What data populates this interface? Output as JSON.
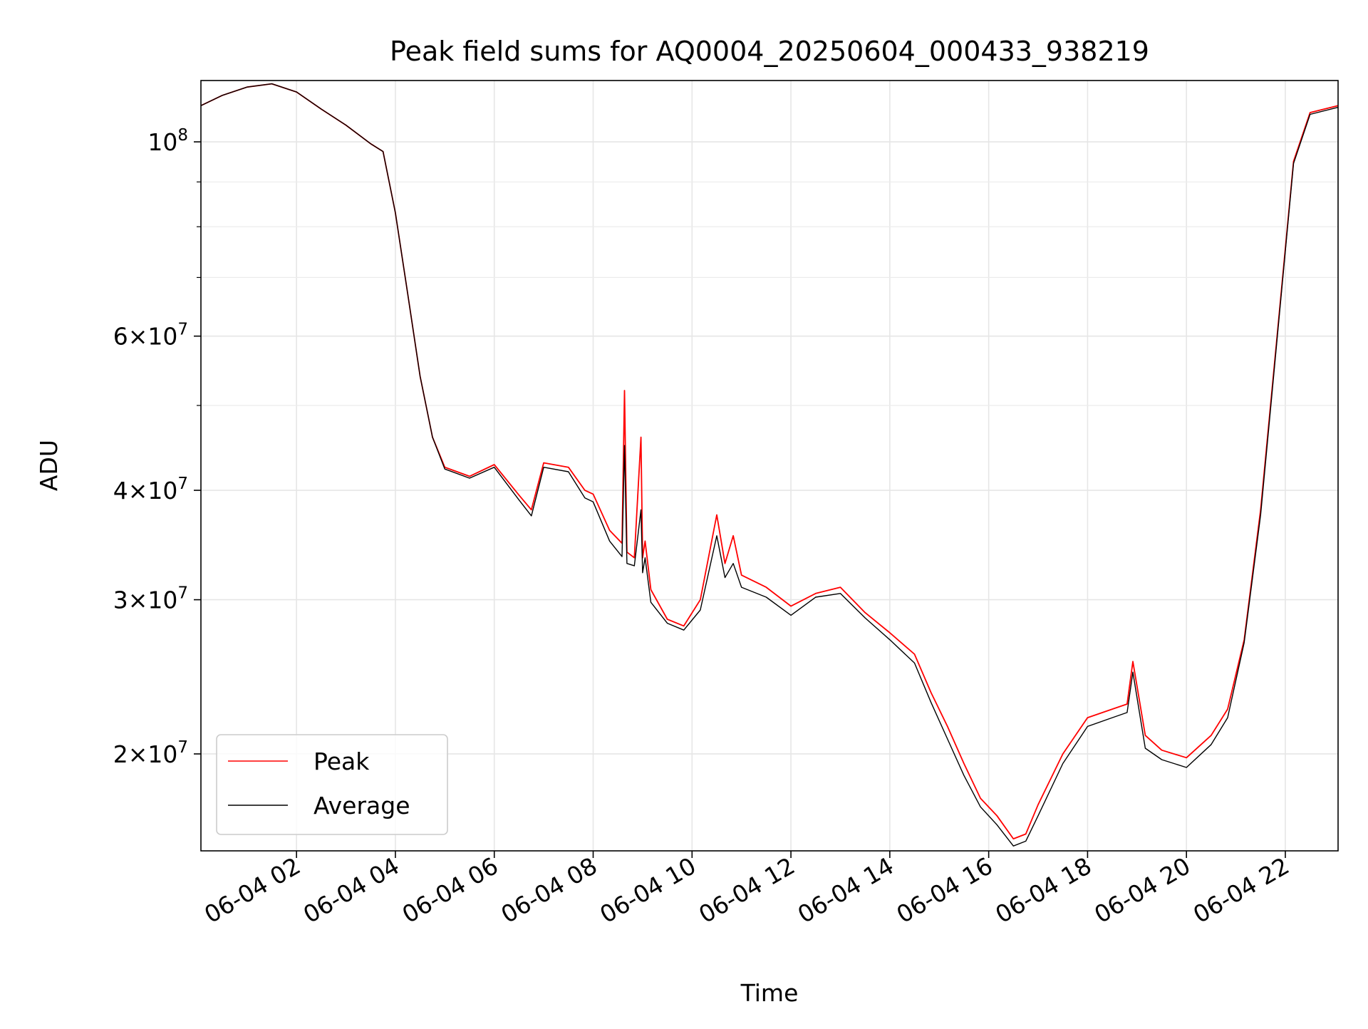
{
  "chart_data": {
    "type": "line",
    "title": "Peak field sums for AQ0004_20250604_000433_938219",
    "xlabel": "Time",
    "ylabel": "ADU",
    "y_scale": "log",
    "grid": true,
    "legend_position": "lower-left",
    "x_range": [
      "2025-06-04 00:04",
      "2025-06-04 23:04"
    ],
    "ylim": [
      15500000,
      117500000
    ],
    "x_ticks": [
      {
        "x": "2025-06-04 02:00",
        "label": "06-04 02"
      },
      {
        "x": "2025-06-04 04:00",
        "label": "06-04 04"
      },
      {
        "x": "2025-06-04 06:00",
        "label": "06-04 06"
      },
      {
        "x": "2025-06-04 08:00",
        "label": "06-04 08"
      },
      {
        "x": "2025-06-04 10:00",
        "label": "06-04 10"
      },
      {
        "x": "2025-06-04 12:00",
        "label": "06-04 12"
      },
      {
        "x": "2025-06-04 14:00",
        "label": "06-04 14"
      },
      {
        "x": "2025-06-04 16:00",
        "label": "06-04 16"
      },
      {
        "x": "2025-06-04 18:00",
        "label": "06-04 18"
      },
      {
        "x": "2025-06-04 20:00",
        "label": "06-04 20"
      },
      {
        "x": "2025-06-04 22:00",
        "label": "06-04 22"
      }
    ],
    "y_ticks": [
      {
        "value": 20000000,
        "label_mantissa": "2×10",
        "label_exp": "7"
      },
      {
        "value": 30000000,
        "label_mantissa": "3×10",
        "label_exp": "7"
      },
      {
        "value": 40000000,
        "label_mantissa": "4×10",
        "label_exp": "7"
      },
      {
        "value": 60000000,
        "label_mantissa": "6×10",
        "label_exp": "7"
      },
      {
        "value": 100000000,
        "label_mantissa": "10",
        "label_exp": "8"
      }
    ],
    "y_minor_ticks": [
      50000000,
      70000000,
      80000000,
      90000000
    ],
    "series": [
      {
        "name": "Peak",
        "color": "#ff0000",
        "x": [
          "2025-06-04 00:04",
          "2025-06-04 00:30",
          "2025-06-04 01:00",
          "2025-06-04 01:30",
          "2025-06-04 02:00",
          "2025-06-04 02:30",
          "2025-06-04 03:00",
          "2025-06-04 03:30",
          "2025-06-04 03:45",
          "2025-06-04 04:00",
          "2025-06-04 04:15",
          "2025-06-04 04:30",
          "2025-06-04 04:45",
          "2025-06-04 05:00",
          "2025-06-04 05:30",
          "2025-06-04 06:00",
          "2025-06-04 06:30",
          "2025-06-04 06:45",
          "2025-06-04 07:00",
          "2025-06-04 07:30",
          "2025-06-04 07:50",
          "2025-06-04 08:00",
          "2025-06-04 08:20",
          "2025-06-04 08:35",
          "2025-06-04 08:38",
          "2025-06-04 08:41",
          "2025-06-04 08:50",
          "2025-06-04 08:58",
          "2025-06-04 09:00",
          "2025-06-04 09:03",
          "2025-06-04 09:10",
          "2025-06-04 09:30",
          "2025-06-04 09:50",
          "2025-06-04 10:10",
          "2025-06-04 10:30",
          "2025-06-04 10:40",
          "2025-06-04 10:50",
          "2025-06-04 11:00",
          "2025-06-04 11:30",
          "2025-06-04 12:00",
          "2025-06-04 12:30",
          "2025-06-04 13:00",
          "2025-06-04 13:30",
          "2025-06-04 14:00",
          "2025-06-04 14:30",
          "2025-06-04 14:50",
          "2025-06-04 15:10",
          "2025-06-04 15:30",
          "2025-06-04 15:50",
          "2025-06-04 16:10",
          "2025-06-04 16:30",
          "2025-06-04 16:45",
          "2025-06-04 17:00",
          "2025-06-04 17:30",
          "2025-06-04 18:00",
          "2025-06-04 18:30",
          "2025-06-04 18:48",
          "2025-06-04 18:55",
          "2025-06-04 19:10",
          "2025-06-04 19:30",
          "2025-06-04 20:00",
          "2025-06-04 20:30",
          "2025-06-04 20:50",
          "2025-06-04 21:10",
          "2025-06-04 21:30",
          "2025-06-04 21:50",
          "2025-06-04 22:10",
          "2025-06-04 22:30",
          "2025-06-04 23:04"
        ],
        "values": [
          110000000,
          113000000,
          115500000,
          116500000,
          114000000,
          109000000,
          104500000,
          99500000,
          97500000,
          83000000,
          67000000,
          54000000,
          46000000,
          42500000,
          41500000,
          42800000,
          39500000,
          38000000,
          43000000,
          42500000,
          40000000,
          39600000,
          36000000,
          34800000,
          52000000,
          34000000,
          33500000,
          46000000,
          33500000,
          35000000,
          30800000,
          28500000,
          28000000,
          30000000,
          37500000,
          33000000,
          35500000,
          32000000,
          31000000,
          29500000,
          30500000,
          31000000,
          29000000,
          27500000,
          26000000,
          23500000,
          21500000,
          19500000,
          17800000,
          17000000,
          16000000,
          16200000,
          17500000,
          20000000,
          22000000,
          22500000,
          22800000,
          25500000,
          21000000,
          20200000,
          19800000,
          21000000,
          22500000,
          27000000,
          38000000,
          60000000,
          95000000,
          108000000,
          110000000
        ]
      },
      {
        "name": "Average",
        "color": "#000000",
        "x": [
          "2025-06-04 00:04",
          "2025-06-04 00:30",
          "2025-06-04 01:00",
          "2025-06-04 01:30",
          "2025-06-04 02:00",
          "2025-06-04 02:30",
          "2025-06-04 03:00",
          "2025-06-04 03:30",
          "2025-06-04 03:45",
          "2025-06-04 04:00",
          "2025-06-04 04:15",
          "2025-06-04 04:30",
          "2025-06-04 04:45",
          "2025-06-04 05:00",
          "2025-06-04 05:30",
          "2025-06-04 06:00",
          "2025-06-04 06:30",
          "2025-06-04 06:45",
          "2025-06-04 07:00",
          "2025-06-04 07:30",
          "2025-06-04 07:50",
          "2025-06-04 08:00",
          "2025-06-04 08:20",
          "2025-06-04 08:35",
          "2025-06-04 08:38",
          "2025-06-04 08:41",
          "2025-06-04 08:50",
          "2025-06-04 08:58",
          "2025-06-04 09:00",
          "2025-06-04 09:03",
          "2025-06-04 09:10",
          "2025-06-04 09:30",
          "2025-06-04 09:50",
          "2025-06-04 10:10",
          "2025-06-04 10:30",
          "2025-06-04 10:40",
          "2025-06-04 10:50",
          "2025-06-04 11:00",
          "2025-06-04 11:30",
          "2025-06-04 12:00",
          "2025-06-04 12:30",
          "2025-06-04 13:00",
          "2025-06-04 13:30",
          "2025-06-04 14:00",
          "2025-06-04 14:30",
          "2025-06-04 14:50",
          "2025-06-04 15:10",
          "2025-06-04 15:30",
          "2025-06-04 15:50",
          "2025-06-04 16:10",
          "2025-06-04 16:30",
          "2025-06-04 16:45",
          "2025-06-04 17:00",
          "2025-06-04 17:30",
          "2025-06-04 18:00",
          "2025-06-04 18:30",
          "2025-06-04 18:48",
          "2025-06-04 18:55",
          "2025-06-04 19:10",
          "2025-06-04 19:30",
          "2025-06-04 20:00",
          "2025-06-04 20:30",
          "2025-06-04 20:50",
          "2025-06-04 21:10",
          "2025-06-04 21:30",
          "2025-06-04 21:50",
          "2025-06-04 22:10",
          "2025-06-04 22:30",
          "2025-06-04 23:04"
        ],
        "values": [
          110000000,
          113000000,
          115500000,
          116500000,
          114000000,
          109000000,
          104500000,
          99500000,
          97500000,
          83000000,
          67000000,
          54000000,
          46000000,
          42300000,
          41300000,
          42500000,
          39000000,
          37400000,
          42500000,
          42000000,
          39200000,
          38800000,
          35000000,
          33600000,
          45000000,
          33000000,
          32800000,
          38000000,
          32200000,
          33500000,
          29800000,
          28200000,
          27700000,
          29200000,
          35500000,
          31800000,
          33000000,
          31000000,
          30200000,
          28800000,
          30200000,
          30500000,
          28600000,
          27000000,
          25400000,
          22900000,
          20800000,
          18900000,
          17400000,
          16600000,
          15700000,
          15900000,
          17000000,
          19500000,
          21500000,
          22000000,
          22300000,
          24800000,
          20300000,
          19700000,
          19300000,
          20500000,
          22000000,
          26800000,
          37500000,
          59500000,
          94500000,
          107500000,
          109500000
        ]
      }
    ]
  }
}
